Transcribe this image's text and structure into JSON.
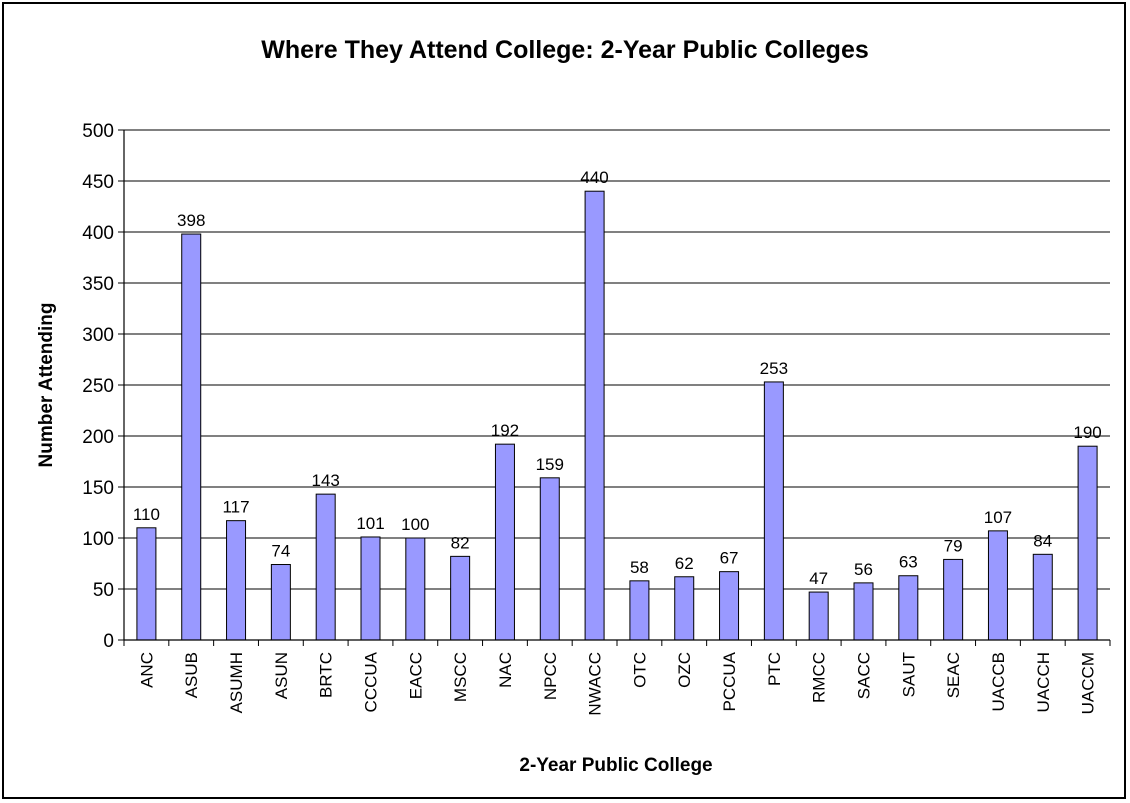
{
  "chart_data": {
    "type": "bar",
    "title": "Where They Attend College: 2-Year Public Colleges",
    "xlabel": "2-Year Public College",
    "ylabel": "Number Attending",
    "ylim": [
      0,
      500
    ],
    "yticks": [
      0,
      50,
      100,
      150,
      200,
      250,
      300,
      350,
      400,
      450,
      500
    ],
    "grid": true,
    "legend": "none",
    "bar_color": "#9999ff",
    "categories": [
      "ANC",
      "ASUB",
      "ASUMH",
      "ASUN",
      "BRTC",
      "CCCUA",
      "EACC",
      "MSCC",
      "NAC",
      "NPCC",
      "NWACC",
      "OTC",
      "OZC",
      "PCCUA",
      "PTC",
      "RMCC",
      "SACC",
      "SAUT",
      "SEAC",
      "UACCB",
      "UACCH",
      "UACCM"
    ],
    "values": [
      110,
      398,
      117,
      74,
      143,
      101,
      100,
      82,
      192,
      159,
      440,
      58,
      62,
      67,
      253,
      47,
      56,
      63,
      79,
      107,
      84,
      190
    ]
  }
}
